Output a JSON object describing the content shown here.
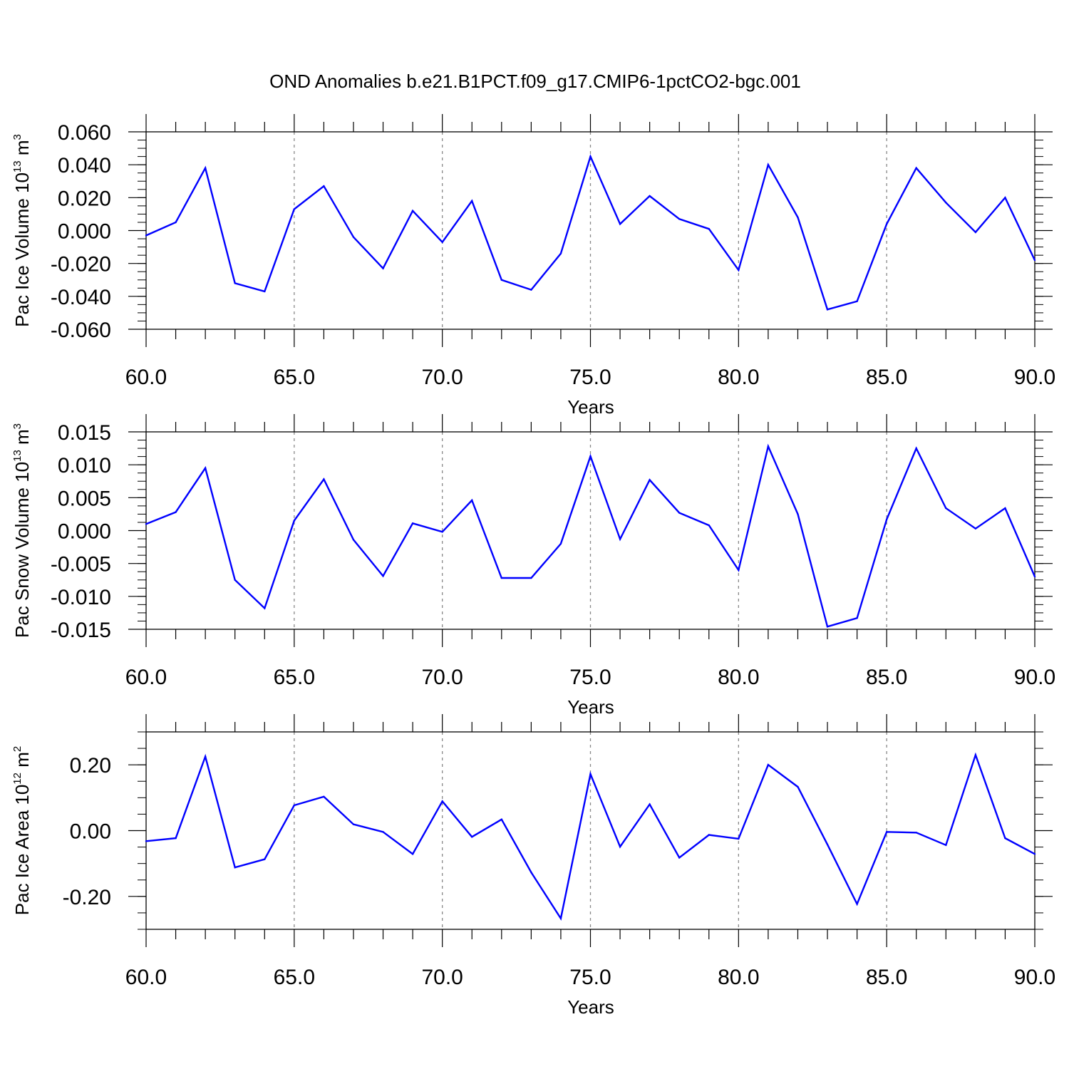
{
  "title": "OND Anomalies b.e21.B1PCT.f09_g17.CMIP6-1pctCO2-bgc.001",
  "colors": {
    "line": "#0000ff",
    "axis": "#000000",
    "grid": "#888888",
    "background": "#ffffff"
  },
  "chart_data": [
    {
      "type": "line",
      "ylabel": {
        "base": "Pac Ice Volume 10",
        "exponent": "13",
        "unit": " m",
        "unit_exponent": "3"
      },
      "xlabel": "Years",
      "xlim": [
        60,
        90
      ],
      "ylim": [
        -0.06,
        0.06
      ],
      "yticks": [
        -0.06,
        -0.04,
        -0.02,
        0.0,
        0.02,
        0.04,
        0.06
      ],
      "ytick_labels": [
        "-0.060",
        "-0.040",
        "-0.020",
        "0.000",
        "0.020",
        "0.040",
        "0.060"
      ],
      "y_minor_step": 0.005,
      "xticks": [
        60,
        65,
        70,
        75,
        80,
        85,
        90
      ],
      "xtick_labels": [
        "60.0",
        "65.0",
        "70.0",
        "75.0",
        "80.0",
        "85.0",
        "90.0"
      ],
      "grid": "vertical dashed at major x ticks",
      "x": [
        60,
        61,
        62,
        63,
        64,
        65,
        66,
        67,
        68,
        69,
        70,
        71,
        72,
        73,
        74,
        75,
        76,
        77,
        78,
        79,
        80,
        81,
        82,
        83,
        84,
        85,
        86,
        87,
        88,
        89,
        90
      ],
      "values": [
        -0.003,
        0.005,
        0.038,
        -0.032,
        -0.037,
        0.013,
        0.027,
        -0.004,
        -0.023,
        0.012,
        -0.007,
        0.018,
        -0.03,
        -0.036,
        -0.014,
        0.045,
        0.004,
        0.021,
        0.007,
        0.001,
        -0.024,
        0.04,
        0.008,
        -0.048,
        -0.043,
        0.004,
        0.038,
        0.017,
        -0.001,
        0.02,
        -0.018
      ]
    },
    {
      "type": "line",
      "ylabel": {
        "base": "Pac Snow Volume 10",
        "exponent": "13",
        "unit": " m",
        "unit_exponent": "3"
      },
      "xlabel": "Years",
      "xlim": [
        60,
        90
      ],
      "ylim": [
        -0.015,
        0.015
      ],
      "yticks": [
        -0.015,
        -0.01,
        -0.005,
        0.0,
        0.005,
        0.01,
        0.015
      ],
      "ytick_labels": [
        "-0.015",
        "-0.010",
        "-0.005",
        "0.000",
        "0.005",
        "0.010",
        "0.015"
      ],
      "y_minor_step": 0.00125,
      "xticks": [
        60,
        65,
        70,
        75,
        80,
        85,
        90
      ],
      "xtick_labels": [
        "60.0",
        "65.0",
        "70.0",
        "75.0",
        "80.0",
        "85.0",
        "90.0"
      ],
      "grid": "vertical dashed at major x ticks",
      "x": [
        60,
        61,
        62,
        63,
        64,
        65,
        66,
        67,
        68,
        69,
        70,
        71,
        72,
        73,
        74,
        75,
        76,
        77,
        78,
        79,
        80,
        81,
        82,
        83,
        84,
        85,
        86,
        87,
        88,
        89,
        90
      ],
      "values": [
        0.001,
        0.0028,
        0.0095,
        -0.0075,
        -0.0118,
        0.0015,
        0.0078,
        -0.0014,
        -0.0069,
        0.0011,
        -0.0002,
        0.0046,
        -0.0072,
        -0.0072,
        -0.002,
        0.0113,
        -0.0013,
        0.0077,
        0.0027,
        0.0008,
        -0.006,
        0.0128,
        0.0025,
        -0.0146,
        -0.0133,
        0.0017,
        0.0125,
        0.0034,
        0.0003,
        0.0034,
        -0.007
      ]
    },
    {
      "type": "line",
      "ylabel": {
        "base": "Pac Ice Area 10",
        "exponent": "12",
        "unit": " m",
        "unit_exponent": "2"
      },
      "xlabel": "Years",
      "xlim": [
        60,
        90
      ],
      "ylim": [
        -0.3,
        0.3
      ],
      "yticks": [
        -0.2,
        0.0,
        0.2
      ],
      "ytick_labels": [
        "-0.20",
        "0.00",
        "0.20"
      ],
      "y_minor_step": 0.05,
      "xticks": [
        60,
        65,
        70,
        75,
        80,
        85,
        90
      ],
      "xtick_labels": [
        "60.0",
        "65.0",
        "70.0",
        "75.0",
        "80.0",
        "85.0",
        "90.0"
      ],
      "grid": "vertical dashed at major x ticks",
      "x": [
        60,
        61,
        62,
        63,
        64,
        65,
        66,
        67,
        68,
        69,
        70,
        71,
        72,
        73,
        74,
        75,
        76,
        77,
        78,
        79,
        80,
        81,
        82,
        83,
        84,
        85,
        86,
        87,
        88,
        89,
        90
      ],
      "values": [
        -0.032,
        -0.023,
        0.225,
        -0.112,
        -0.087,
        0.077,
        0.103,
        0.019,
        -0.004,
        -0.071,
        0.089,
        -0.019,
        0.034,
        -0.127,
        -0.267,
        0.172,
        -0.049,
        0.08,
        -0.082,
        -0.013,
        -0.025,
        0.2,
        0.133,
        -0.042,
        -0.223,
        -0.004,
        -0.006,
        -0.044,
        0.23,
        -0.023,
        -0.071
      ]
    }
  ]
}
